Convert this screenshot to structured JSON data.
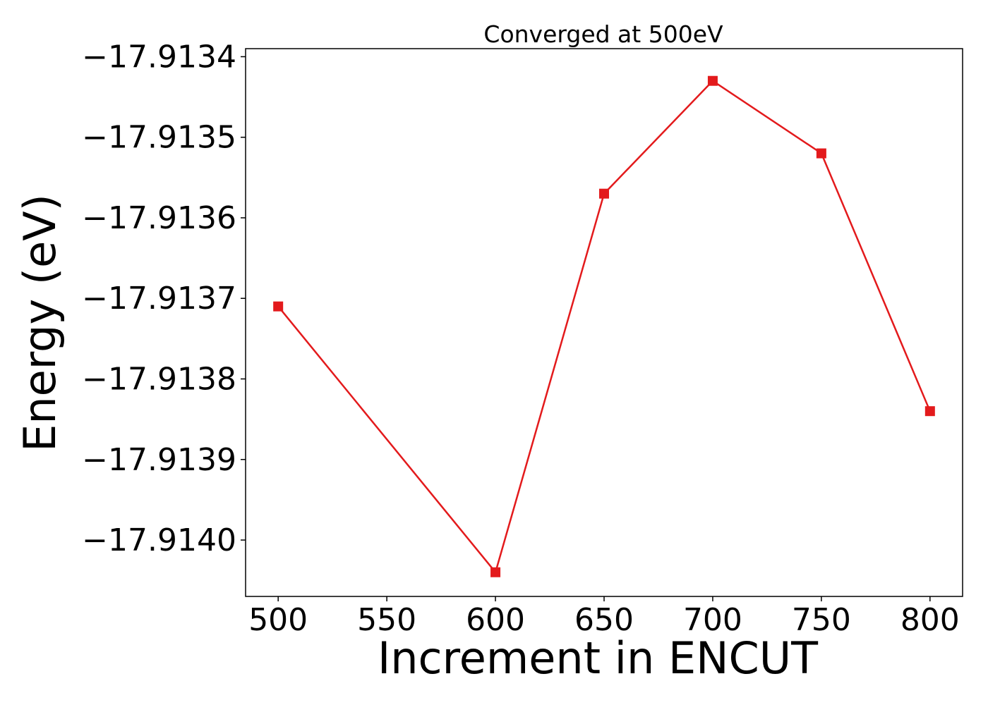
{
  "chart_data": {
    "type": "line",
    "title": "Converged at 500eV",
    "xlabel": "Increment in ENCUT",
    "ylabel": "Energy (eV)",
    "x": [
      500,
      600,
      650,
      700,
      750,
      800
    ],
    "series": [
      {
        "values": [
          -17.91371,
          -17.91404,
          -17.91357,
          -17.91343,
          -17.91352,
          -17.91384
        ]
      }
    ],
    "xlim": [
      485,
      815
    ],
    "ylim": [
      -17.91407,
      -17.91339
    ],
    "xticks": [
      500,
      550,
      600,
      650,
      700,
      750,
      800
    ],
    "xtick_labels": [
      "500",
      "550",
      "600",
      "650",
      "700",
      "750",
      "800"
    ],
    "yticks": [
      -17.9134,
      -17.9135,
      -17.9136,
      -17.9137,
      -17.9138,
      -17.9139,
      -17.914
    ],
    "ytick_labels": [
      "−17.9134",
      "−17.9135",
      "−17.9136",
      "−17.9137",
      "−17.9138",
      "−17.9139",
      "−17.9140"
    ],
    "marker": "square",
    "grid": false,
    "line_color": "#e31a1c"
  }
}
